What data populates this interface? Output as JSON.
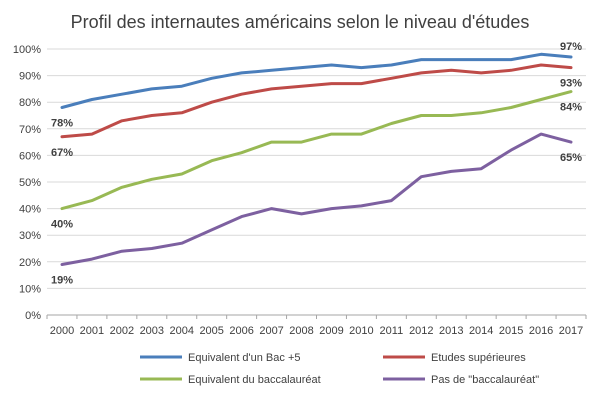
{
  "chart_data": {
    "type": "line",
    "title": "Profil des internautes américains selon le niveau d'études",
    "x": [
      "2000",
      "2001",
      "2002",
      "2003",
      "2004",
      "2005",
      "2006",
      "2007",
      "2008",
      "2009",
      "2010",
      "2011",
      "2012",
      "2013",
      "2014",
      "2015",
      "2016",
      "2017"
    ],
    "ylim": [
      0,
      100
    ],
    "yticks": [
      "0%",
      "10%",
      "20%",
      "30%",
      "40%",
      "50%",
      "60%",
      "70%",
      "80%",
      "90%",
      "100%"
    ],
    "grid": true,
    "legend_position": "bottom",
    "series": [
      {
        "name": "Equivalent d'un Bac +5",
        "color": "#4a7ebb",
        "values": [
          78,
          81,
          83,
          85,
          86,
          89,
          91,
          92,
          93,
          94,
          93,
          94,
          96,
          96,
          96,
          96,
          98,
          97
        ],
        "labels": [
          {
            "index": 0,
            "text": "78%",
            "pos": "below"
          },
          {
            "index": 17,
            "text": "97%",
            "pos": "above"
          }
        ]
      },
      {
        "name": "Etudes supérieures",
        "color": "#be4b48",
        "values": [
          67,
          68,
          73,
          75,
          76,
          80,
          83,
          85,
          86,
          87,
          87,
          89,
          91,
          92,
          91,
          92,
          94,
          93
        ],
        "labels": [
          {
            "index": 0,
            "text": "67%",
            "pos": "below"
          },
          {
            "index": 17,
            "text": "93%",
            "pos": "below"
          }
        ]
      },
      {
        "name": "Equivalent du baccalauréat",
        "color": "#98b954",
        "values": [
          40,
          43,
          48,
          51,
          53,
          58,
          61,
          65,
          65,
          68,
          68,
          72,
          75,
          75,
          76,
          78,
          81,
          84
        ],
        "labels": [
          {
            "index": 0,
            "text": "40%",
            "pos": "below"
          },
          {
            "index": 17,
            "text": "84%",
            "pos": "below"
          }
        ]
      },
      {
        "name": "Pas de \"baccalauréat\"",
        "color": "#7d60a0",
        "values": [
          19,
          21,
          24,
          25,
          27,
          32,
          37,
          40,
          38,
          40,
          41,
          43,
          52,
          54,
          55,
          62,
          68,
          65
        ],
        "labels": [
          {
            "index": 0,
            "text": "19%",
            "pos": "below"
          },
          {
            "index": 17,
            "text": "65%",
            "pos": "below"
          }
        ]
      }
    ]
  }
}
